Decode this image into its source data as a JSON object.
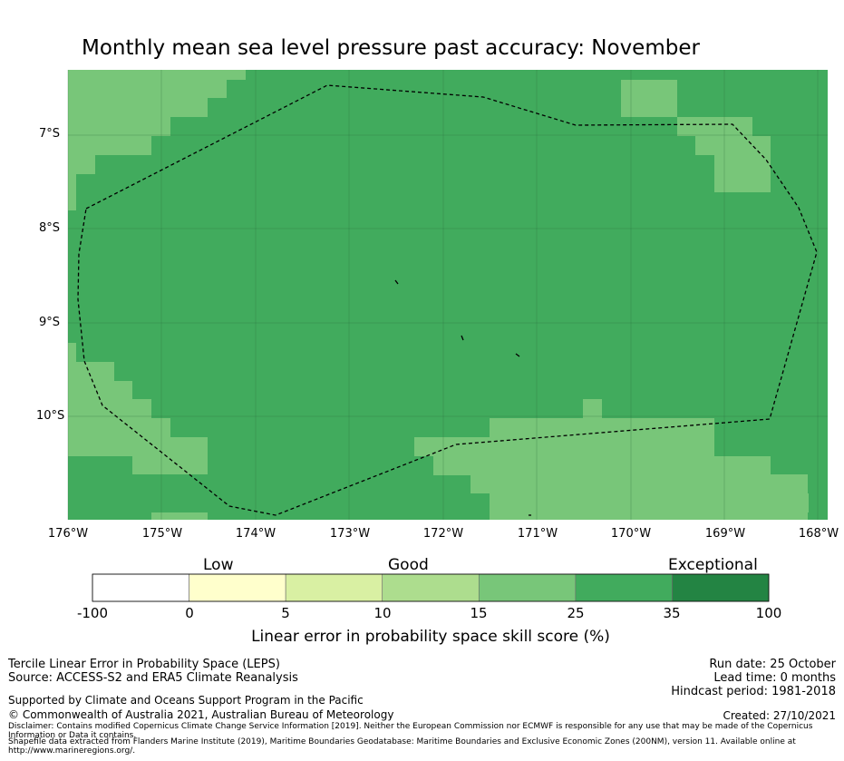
{
  "title": "Monthly mean sea level pressure past accuracy: November",
  "map": {
    "lat_labels": [
      "7°S",
      "8°S",
      "9°S",
      "10°S"
    ],
    "lon_labels": [
      "176°W",
      "175°W",
      "174°W",
      "173°W",
      "172°W",
      "171°W",
      "170°W",
      "169°W",
      "168°W"
    ],
    "colors": {
      "band_25_35": "#41ab5d",
      "band_15_25": "#78c679",
      "band_35_100": "#238443",
      "grid": "#2a6b3a",
      "boundary": "#000000"
    }
  },
  "colorbar": {
    "categories": [
      "Low",
      "Good",
      "Exceptional"
    ],
    "ticks": [
      "-100",
      "0",
      "5",
      "10",
      "15",
      "25",
      "35",
      "100"
    ],
    "colors": [
      "#ffffff",
      "#ffffcc",
      "#d9f0a3",
      "#addd8e",
      "#78c679",
      "#41ab5d",
      "#238443"
    ],
    "label": "Linear error in probability space skill score (%)"
  },
  "footer": {
    "left_line1": "Tercile Linear Error in Probability Space (LEPS)",
    "left_line2": "Source: ACCESS-S2 and ERA5 Climate Reanalysis",
    "support": "Supported by Climate and Oceans Support Program in the Pacific",
    "copyright": "© Commonwealth of Australia 2021, Australian Bureau of Meteorology",
    "run_date": "Run date: 25 October",
    "lead_time": "Lead time: 0 months",
    "hindcast": "Hindcast period: 1981-2018",
    "created": "Created: 27/10/2021",
    "disclaimer": "Disclaimer: Contains modified Copernicus Climate Change Service Information [2019]. Neither the European Commission nor ECMWF is responsible for any use that may be made of the Copernicus Information or Data it contains.",
    "shapefile": "Shapefile data extracted from Flanders Marine Institute (2019), Maritime Boundaries Geodatabase: Maritime Boundaries and Exclusive Economic Zones (200NM), version 11. Available online at http://www.marineregions.org/."
  }
}
